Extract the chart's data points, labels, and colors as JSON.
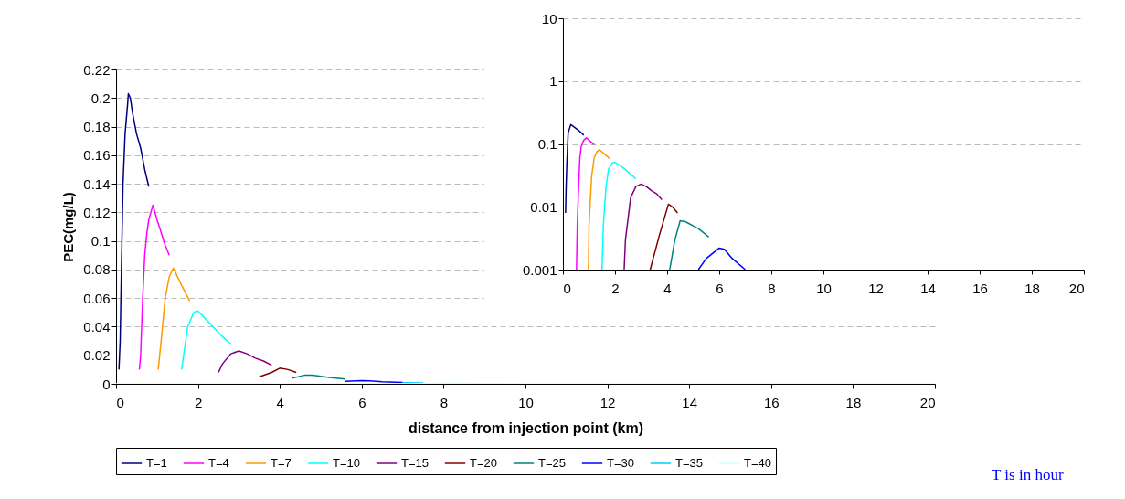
{
  "chart_data": [
    {
      "type": "line",
      "xlabel": "distance from injection point (km)",
      "ylabel": "PEC(mg/L)",
      "xlim": [
        0,
        20
      ],
      "ylim": [
        0,
        0.22
      ],
      "xticks": [
        0,
        2,
        4,
        6,
        8,
        10,
        12,
        14,
        16,
        18,
        20
      ],
      "yticks": [
        0,
        0.02,
        0.04,
        0.06,
        0.08,
        0.1,
        0.12,
        0.14,
        0.16,
        0.18,
        0.2,
        0.22
      ],
      "grid": "y",
      "legend": "bottom",
      "annotations": [
        "T is in hour"
      ],
      "series": [
        {
          "name": "T=1",
          "color": "#000080",
          "x": [
            0.07,
            0.1,
            0.13,
            0.17,
            0.22,
            0.28,
            0.3,
            0.35,
            0.4,
            0.5,
            0.6,
            0.7,
            0.8
          ],
          "values": [
            0.01,
            0.03,
            0.08,
            0.14,
            0.175,
            0.195,
            0.203,
            0.2,
            0.19,
            0.175,
            0.165,
            0.15,
            0.138
          ]
        },
        {
          "name": "T=4",
          "color": "#ff00ff",
          "x": [
            0.57,
            0.6,
            0.65,
            0.7,
            0.75,
            0.8,
            0.9,
            1.0,
            1.2,
            1.3
          ],
          "values": [
            0.01,
            0.02,
            0.06,
            0.09,
            0.105,
            0.115,
            0.125,
            0.115,
            0.097,
            0.09
          ]
        },
        {
          "name": "T=7",
          "color": "#ff9900",
          "x": [
            1.03,
            1.1,
            1.2,
            1.3,
            1.4,
            1.6,
            1.8
          ],
          "values": [
            0.01,
            0.03,
            0.06,
            0.075,
            0.081,
            0.069,
            0.058
          ]
        },
        {
          "name": "T=10",
          "color": "#00ffff",
          "x": [
            1.6,
            1.65,
            1.75,
            1.9,
            2.0,
            2.2,
            2.4,
            2.6,
            2.8
          ],
          "values": [
            0.01,
            0.02,
            0.04,
            0.05,
            0.051,
            0.045,
            0.039,
            0.033,
            0.028
          ]
        },
        {
          "name": "T=15",
          "color": "#800080",
          "x": [
            2.5,
            2.6,
            2.8,
            3.0,
            3.2,
            3.4,
            3.6,
            3.8
          ],
          "values": [
            0.008,
            0.014,
            0.021,
            0.023,
            0.021,
            0.018,
            0.016,
            0.013
          ]
        },
        {
          "name": "T=20",
          "color": "#800000",
          "x": [
            3.5,
            3.8,
            4.0,
            4.2,
            4.4
          ],
          "values": [
            0.005,
            0.008,
            0.011,
            0.01,
            0.008
          ]
        },
        {
          "name": "T=25",
          "color": "#008080",
          "x": [
            4.3,
            4.6,
            4.8,
            5.2,
            5.6
          ],
          "values": [
            0.004,
            0.006,
            0.006,
            0.0045,
            0.0033
          ]
        },
        {
          "name": "T=30",
          "color": "#0000ff",
          "x": [
            5.6,
            6.0,
            6.2,
            6.5,
            7.0
          ],
          "values": [
            0.0017,
            0.0022,
            0.0021,
            0.0015,
            0.001
          ]
        },
        {
          "name": "T=35",
          "color": "#00ccff",
          "x": [
            7.0,
            7.5
          ],
          "values": [
            0.0008,
            0.0006
          ]
        },
        {
          "name": "T=40",
          "color": "#ccffff",
          "x": [
            0,
            7.0,
            7.5,
            8.0,
            8.5,
            9.0,
            10,
            20
          ],
          "values": [
            0,
            0,
            0.0002,
            0.0004,
            0.0003,
            0.0002,
            0,
            0
          ]
        }
      ]
    },
    {
      "type": "line",
      "log": "y",
      "xlim": [
        0,
        20
      ],
      "ylim": [
        0.001,
        10
      ],
      "xticks": [
        0,
        2,
        4,
        6,
        8,
        10,
        12,
        14,
        16,
        18,
        20
      ],
      "yticks": [
        0.001,
        0.01,
        0.1,
        1,
        10
      ],
      "grid": "y",
      "series": [
        {
          "color": "#000080",
          "x": [
            0.1,
            0.12,
            0.15,
            0.2,
            0.3,
            0.4,
            0.6,
            0.8
          ],
          "values": [
            0.008,
            0.02,
            0.05,
            0.15,
            0.203,
            0.19,
            0.165,
            0.138
          ]
        },
        {
          "color": "#ff00ff",
          "x": [
            0.52,
            0.55,
            0.6,
            0.65,
            0.7,
            0.8,
            0.9,
            1.0,
            1.2
          ],
          "values": [
            0.001,
            0.005,
            0.02,
            0.06,
            0.09,
            0.115,
            0.125,
            0.115,
            0.097
          ]
        },
        {
          "color": "#ff9900",
          "x": [
            0.98,
            1.0,
            1.1,
            1.2,
            1.3,
            1.4,
            1.6,
            1.8
          ],
          "values": [
            0.001,
            0.005,
            0.03,
            0.06,
            0.075,
            0.081,
            0.069,
            0.058
          ]
        },
        {
          "color": "#00ffff",
          "x": [
            1.5,
            1.55,
            1.65,
            1.75,
            1.9,
            2.0,
            2.2,
            2.4,
            2.6,
            2.8
          ],
          "values": [
            0.001,
            0.005,
            0.02,
            0.04,
            0.05,
            0.051,
            0.045,
            0.039,
            0.033,
            0.028
          ]
        },
        {
          "color": "#800080",
          "x": [
            2.35,
            2.4,
            2.6,
            2.8,
            3.0,
            3.2,
            3.4,
            3.6,
            3.8
          ],
          "values": [
            0.001,
            0.003,
            0.014,
            0.021,
            0.023,
            0.021,
            0.018,
            0.016,
            0.013
          ]
        },
        {
          "color": "#800000",
          "x": [
            3.35,
            3.7,
            4.05,
            4.2,
            4.4
          ],
          "values": [
            0.001,
            0.0035,
            0.011,
            0.01,
            0.008
          ]
        },
        {
          "color": "#008080",
          "x": [
            4.1,
            4.3,
            4.5,
            4.7,
            5.2,
            5.6
          ],
          "values": [
            0.001,
            0.003,
            0.006,
            0.0058,
            0.0045,
            0.0033
          ]
        },
        {
          "color": "#0000ff",
          "x": [
            5.2,
            5.5,
            6.0,
            6.2,
            6.5,
            7.0
          ],
          "values": [
            0.001,
            0.0015,
            0.0022,
            0.0021,
            0.0015,
            0.001
          ]
        }
      ]
    }
  ]
}
